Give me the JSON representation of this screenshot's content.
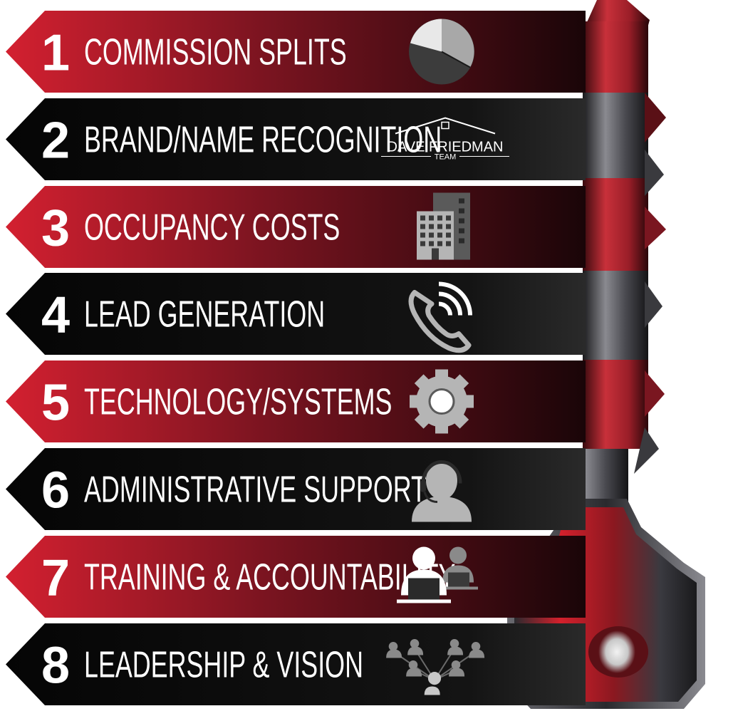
{
  "items": [
    {
      "number": "1",
      "label": "COMMISSION SPLITS",
      "theme": "red",
      "icon": "pie-chart-icon"
    },
    {
      "number": "2",
      "label": "BRAND/NAME RECOGNITION",
      "theme": "black",
      "icon": "dave-friedman-team-logo"
    },
    {
      "number": "3",
      "label": "OCCUPANCY COSTS",
      "theme": "red",
      "icon": "office-building-icon"
    },
    {
      "number": "4",
      "label": "LEAD GENERATION",
      "theme": "black",
      "icon": "phone-ringing-icon"
    },
    {
      "number": "5",
      "label": "TECHNOLOGY/SYSTEMS",
      "theme": "red",
      "icon": "gear-icon"
    },
    {
      "number": "6",
      "label": "ADMINISTRATIVE SUPPORT",
      "theme": "black",
      "icon": "headset-agent-icon"
    },
    {
      "number": "7",
      "label": "TRAINING & ACCOUNTABILITY",
      "theme": "red",
      "icon": "training-people-icon"
    },
    {
      "number": "8",
      "label": "LEADERSHIP & VISION",
      "theme": "black",
      "icon": "team-network-icon"
    }
  ],
  "logo": {
    "line1": "DAVE FRIEDMAN",
    "line2": "TEAM"
  },
  "colors": {
    "red_dark": "#4a0a12",
    "red_light": "#c8202e",
    "black": "#0c0c0c",
    "text": "#ffffff",
    "icon": "#b5b5b5"
  }
}
